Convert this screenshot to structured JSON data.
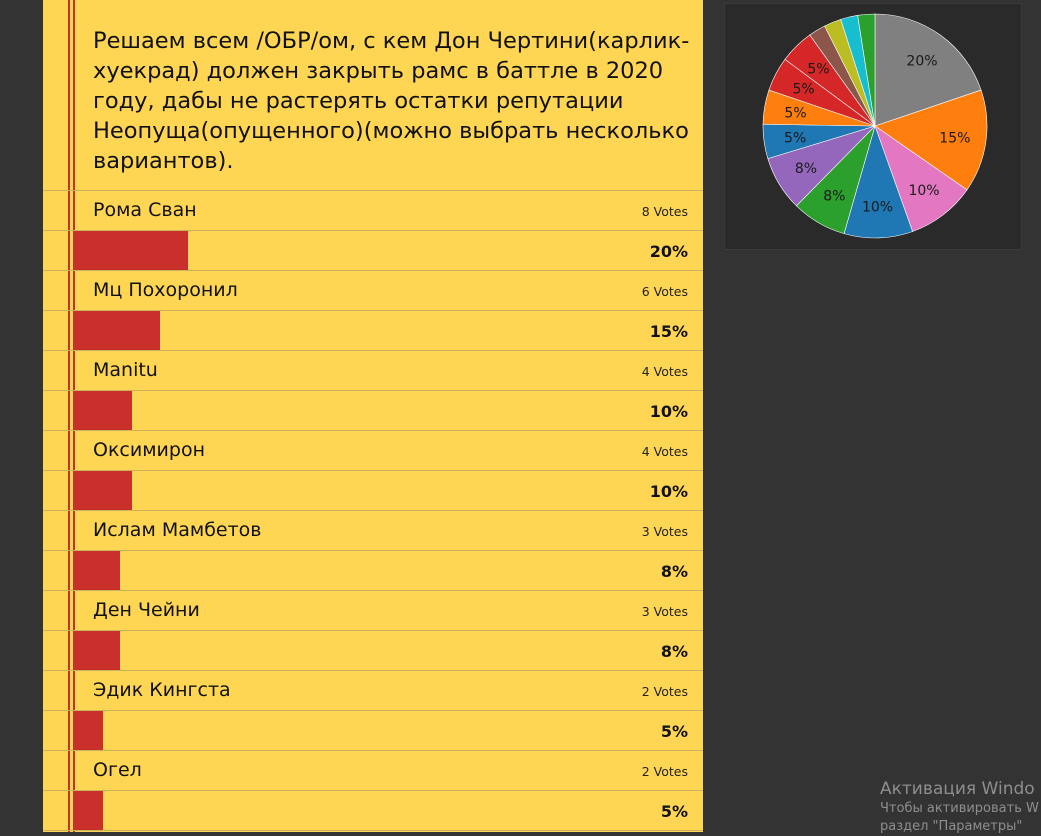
{
  "poll": {
    "question": "Решаем всем /ОБР/ом, с кем Дон Чертини(карлик-хуекрад) должен закрыть рамс в баттле в 2020 году, дабы не растерять остатки репутации Неопуща(опущенного)(можно выбрать несколько вариантов).",
    "colors": {
      "background": "#fed654",
      "bar": "#c9302c",
      "margin_line": "#c0342c"
    },
    "options": [
      {
        "label": "Рома Сван",
        "votes_text": "8 Votes",
        "percent_text": "20%",
        "percent": 20
      },
      {
        "label": "Мц Похоронил",
        "votes_text": "6 Votes",
        "percent_text": "15%",
        "percent": 15
      },
      {
        "label": "Manitu",
        "votes_text": "4 Votes",
        "percent_text": "10%",
        "percent": 10
      },
      {
        "label": "Оксимирон",
        "votes_text": "4 Votes",
        "percent_text": "10%",
        "percent": 10
      },
      {
        "label": "Ислам Мамбетов",
        "votes_text": "3 Votes",
        "percent_text": "8%",
        "percent": 8
      },
      {
        "label": "Ден Чейни",
        "votes_text": "3 Votes",
        "percent_text": "8%",
        "percent": 8
      },
      {
        "label": "Эдик Кингста",
        "votes_text": "2 Votes",
        "percent_text": "5%",
        "percent": 5
      },
      {
        "label": "Огел",
        "votes_text": "2 Votes",
        "percent_text": "5%",
        "percent": 5
      }
    ]
  },
  "chart_data": {
    "type": "pie",
    "title": "",
    "legend": "none",
    "slices": [
      {
        "value": 20,
        "label": "20%",
        "color": "#808080"
      },
      {
        "value": 15,
        "label": "15%",
        "color": "#ff7f0e"
      },
      {
        "value": 10,
        "label": "10%",
        "color": "#e377c2"
      },
      {
        "value": 10,
        "label": "10%",
        "color": "#1f77b4"
      },
      {
        "value": 8,
        "label": "8%",
        "color": "#2ca02c"
      },
      {
        "value": 8,
        "label": "8%",
        "color": "#9467bd"
      },
      {
        "value": 5,
        "label": "5%",
        "color": "#1f77b4"
      },
      {
        "value": 5,
        "label": "5%",
        "color": "#ff7f0e"
      },
      {
        "value": 5,
        "label": "5%",
        "color": "#d62728"
      },
      {
        "value": 5,
        "label": "5%",
        "color": "#d62728"
      },
      {
        "value": 2.5,
        "label": "",
        "color": "#8c564b"
      },
      {
        "value": 2.5,
        "label": "",
        "color": "#bcbd22"
      },
      {
        "value": 2.5,
        "label": "",
        "color": "#17becf"
      },
      {
        "value": 2.5,
        "label": "",
        "color": "#2ca02c"
      }
    ]
  },
  "watermark": {
    "title": "Активация Windo",
    "line1": "Чтобы активировать W",
    "line2": "раздел \"Параметры\""
  }
}
